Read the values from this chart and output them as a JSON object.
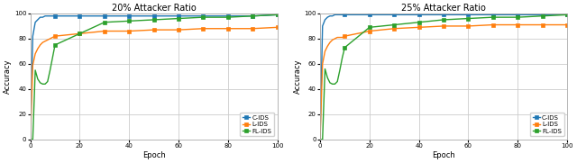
{
  "plot1": {
    "title": "20% Attacker Ratio",
    "xlabel": "Epoch",
    "ylabel": "Accuracy",
    "xlim": [
      0,
      100
    ],
    "ylim": [
      0,
      100
    ],
    "xticks": [
      0,
      20,
      40,
      60,
      80,
      100
    ],
    "yticks": [
      0,
      20,
      40,
      60,
      80,
      100
    ],
    "c_ids": {
      "x": [
        0,
        1,
        2,
        3,
        4,
        5,
        6,
        7,
        8,
        9,
        10,
        20,
        30,
        40,
        50,
        60,
        70,
        80,
        90,
        100
      ],
      "y": [
        0,
        82,
        93,
        95,
        97,
        97,
        98,
        98,
        98,
        98,
        98,
        98,
        98,
        98,
        98,
        98,
        98,
        98,
        98,
        99
      ],
      "color": "#1f77b4",
      "marker": "s",
      "label": "C-IDS"
    },
    "l_ids": {
      "x": [
        0,
        1,
        2,
        3,
        4,
        5,
        6,
        7,
        8,
        9,
        10,
        20,
        30,
        40,
        50,
        60,
        70,
        80,
        90,
        100
      ],
      "y": [
        0,
        59,
        68,
        72,
        75,
        77,
        78,
        79,
        80,
        81,
        82,
        84,
        86,
        86,
        87,
        87,
        88,
        88,
        88,
        89
      ],
      "color": "#ff7f0e",
      "marker": "s",
      "label": "L-IDS"
    },
    "fl_ids": {
      "x": [
        0,
        1,
        2,
        3,
        4,
        5,
        6,
        7,
        8,
        9,
        10,
        20,
        30,
        40,
        50,
        60,
        70,
        80,
        90,
        100
      ],
      "y": [
        0,
        0,
        55,
        48,
        45,
        44,
        44,
        46,
        55,
        65,
        75,
        84,
        93,
        94,
        95,
        96,
        97,
        97,
        98,
        99
      ],
      "color": "#2ca02c",
      "marker": "s",
      "label": "FL-IDS"
    }
  },
  "plot2": {
    "title": "25% Attacker Ratio",
    "xlabel": "Epoch",
    "ylabel": "Accuracy",
    "xlim": [
      0,
      100
    ],
    "ylim": [
      0,
      100
    ],
    "xticks": [
      0,
      20,
      40,
      60,
      80,
      100
    ],
    "yticks": [
      0,
      20,
      40,
      60,
      80,
      100
    ],
    "c_ids": {
      "x": [
        0,
        1,
        2,
        3,
        4,
        5,
        6,
        7,
        8,
        9,
        10,
        20,
        30,
        40,
        50,
        60,
        70,
        80,
        90,
        100
      ],
      "y": [
        0,
        90,
        95,
        97,
        98,
        98,
        99,
        99,
        99,
        99,
        99,
        99,
        99,
        99,
        99,
        99,
        99,
        99,
        99,
        99
      ],
      "color": "#1f77b4",
      "marker": "s",
      "label": "C-IDS"
    },
    "l_ids": {
      "x": [
        0,
        1,
        2,
        3,
        4,
        5,
        6,
        7,
        8,
        9,
        10,
        20,
        30,
        40,
        50,
        60,
        70,
        80,
        90,
        100
      ],
      "y": [
        0,
        60,
        70,
        74,
        77,
        79,
        80,
        81,
        81,
        81,
        82,
        86,
        88,
        89,
        90,
        90,
        91,
        91,
        91,
        91
      ],
      "color": "#ff7f0e",
      "marker": "s",
      "label": "L-IDS"
    },
    "fl_ids": {
      "x": [
        0,
        1,
        2,
        3,
        4,
        5,
        6,
        7,
        8,
        9,
        10,
        20,
        30,
        40,
        50,
        60,
        70,
        80,
        90,
        100
      ],
      "y": [
        0,
        0,
        56,
        49,
        45,
        44,
        44,
        46,
        55,
        65,
        73,
        89,
        91,
        93,
        95,
        96,
        97,
        97,
        98,
        99
      ],
      "color": "#2ca02c",
      "marker": "s",
      "label": "FL-IDS"
    }
  },
  "fig_bg": "#ffffff",
  "ax_bg": "#ffffff",
  "grid_color": "#cccccc",
  "spine_color": "#aaaaaa"
}
